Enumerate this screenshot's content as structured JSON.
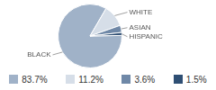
{
  "chart_data": {
    "type": "pie",
    "categories": [
      "BLACK",
      "WHITE",
      "ASIAN",
      "HISPANIC"
    ],
    "values": [
      83.7,
      11.2,
      3.6,
      1.5
    ],
    "value_labels": [
      "83.7%",
      "11.2%",
      "3.6%",
      "1.5%"
    ],
    "colors": [
      "#a0b2c8",
      "#d6dee8",
      "#6f88a7",
      "#2f4f74"
    ],
    "legend": "bottom"
  }
}
